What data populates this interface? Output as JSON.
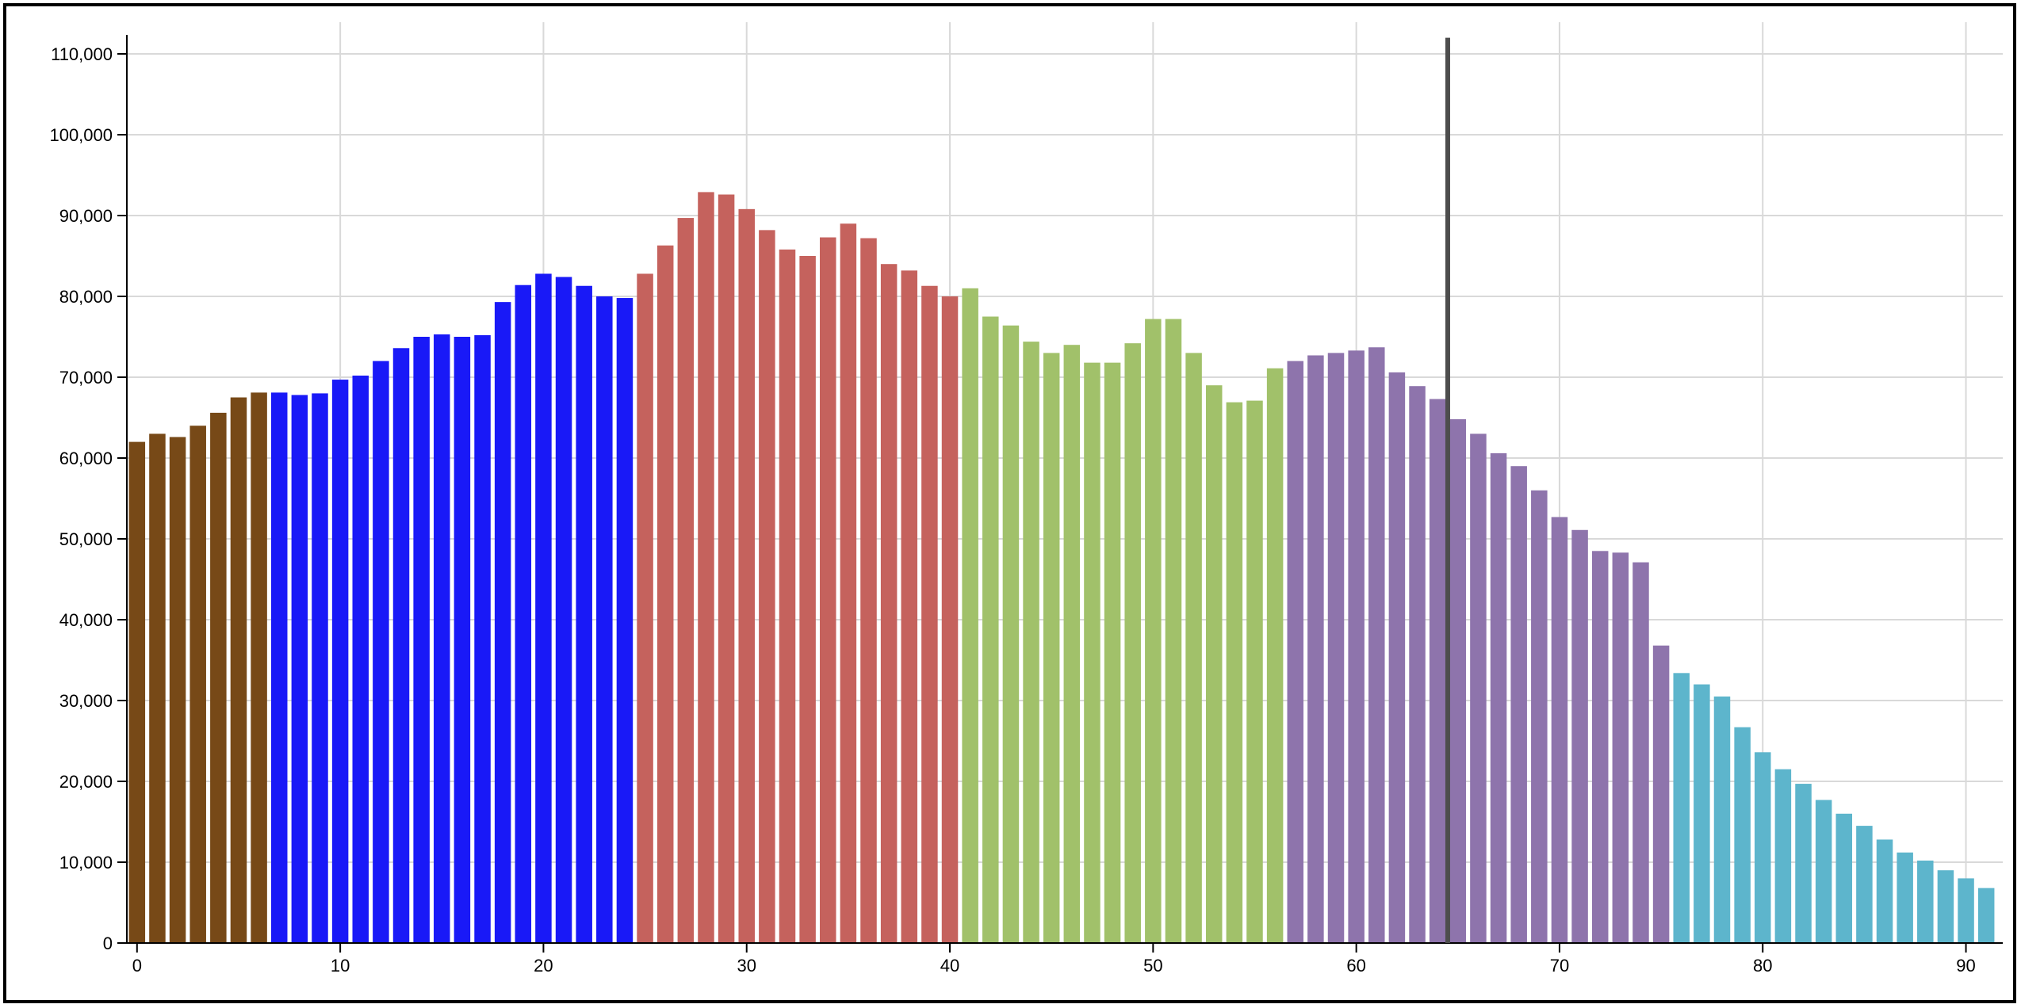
{
  "chart_data": {
    "type": "bar",
    "title": "",
    "xlabel": "",
    "ylabel": "",
    "xlim": [
      -0.5,
      91.5
    ],
    "ylim": [
      0,
      110000
    ],
    "x_ticks": [
      0,
      10,
      20,
      30,
      40,
      50,
      60,
      70,
      80,
      90
    ],
    "x_tick_labels": [
      "0",
      "10",
      "20",
      "30",
      "40",
      "50",
      "60",
      "70",
      "80",
      "90"
    ],
    "y_ticks": [
      0,
      10000,
      20000,
      30000,
      40000,
      50000,
      60000,
      70000,
      80000,
      90000,
      100000,
      110000
    ],
    "y_tick_labels": [
      "0",
      "10,000",
      "20,000",
      "30,000",
      "40,000",
      "50,000",
      "60,000",
      "70,000",
      "80,000",
      "90,000",
      "100,000",
      "110,000"
    ],
    "grid": true,
    "legend": "none",
    "x": [
      0,
      1,
      2,
      3,
      4,
      5,
      6,
      7,
      8,
      9,
      10,
      11,
      12,
      13,
      14,
      15,
      16,
      17,
      18,
      19,
      20,
      21,
      22,
      23,
      24,
      25,
      26,
      27,
      28,
      29,
      30,
      31,
      32,
      33,
      34,
      35,
      36,
      37,
      38,
      39,
      40,
      41,
      42,
      43,
      44,
      45,
      46,
      47,
      48,
      49,
      50,
      51,
      52,
      53,
      54,
      55,
      56,
      57,
      58,
      59,
      60,
      61,
      62,
      63,
      64,
      65,
      66,
      67,
      68,
      69,
      70,
      71,
      72,
      73,
      74,
      75,
      76,
      77,
      78,
      79,
      80,
      81,
      82,
      83,
      84,
      85,
      86,
      87,
      88,
      89,
      90,
      91
    ],
    "values": [
      62000,
      63000,
      62600,
      64000,
      65600,
      67500,
      68100,
      68100,
      67800,
      68000,
      69700,
      70200,
      72000,
      73600,
      75000,
      75300,
      75000,
      75200,
      79300,
      81400,
      82800,
      82400,
      81300,
      80000,
      79800,
      82800,
      86300,
      89700,
      92900,
      92600,
      90800,
      88200,
      85800,
      85000,
      87300,
      89000,
      87200,
      84000,
      83200,
      81300,
      80000,
      81000,
      77500,
      76400,
      74400,
      73000,
      74000,
      71800,
      71800,
      74200,
      77200,
      77200,
      73000,
      69000,
      66900,
      67100,
      71100,
      72000,
      72700,
      73000,
      73300,
      73700,
      70600,
      68900,
      67300,
      64800,
      63000,
      60600,
      59000,
      56000,
      52700,
      51100,
      48500,
      48300,
      47100,
      36800,
      33400,
      32000,
      30500,
      26700,
      23600,
      21500,
      19700,
      17700,
      16000,
      14500,
      12800,
      11200,
      10200,
      9000,
      8000,
      6800
    ],
    "value_colors": [
      "#774917",
      "#774917",
      "#774917",
      "#774917",
      "#774917",
      "#774917",
      "#774917",
      "#1919f7",
      "#1919f7",
      "#1919f7",
      "#1919f7",
      "#1919f7",
      "#1919f7",
      "#1919f7",
      "#1919f7",
      "#1919f7",
      "#1919f7",
      "#1919f7",
      "#1919f7",
      "#1919f7",
      "#1919f7",
      "#1919f7",
      "#1919f7",
      "#1919f7",
      "#1919f7",
      "#c5625d",
      "#c5625d",
      "#c5625d",
      "#c5625d",
      "#c5625d",
      "#c5625d",
      "#c5625d",
      "#c5625d",
      "#c5625d",
      "#c5625d",
      "#c5625d",
      "#c5625d",
      "#c5625d",
      "#c5625d",
      "#c5625d",
      "#c5625d",
      "#a1c16a",
      "#a1c16a",
      "#a1c16a",
      "#a1c16a",
      "#a1c16a",
      "#a1c16a",
      "#a1c16a",
      "#a1c16a",
      "#a1c16a",
      "#a1c16a",
      "#a1c16a",
      "#a1c16a",
      "#a1c16a",
      "#a1c16a",
      "#a1c16a",
      "#a1c16a",
      "#8e74ac",
      "#8e74ac",
      "#8e74ac",
      "#8e74ac",
      "#8e74ac",
      "#8e74ac",
      "#8e74ac",
      "#8e74ac",
      "#8e74ac",
      "#8e74ac",
      "#8e74ac",
      "#8e74ac",
      "#8e74ac",
      "#8e74ac",
      "#8e74ac",
      "#8e74ac",
      "#8e74ac",
      "#8e74ac",
      "#8e74ac",
      "#5db5cc",
      "#5db5cc",
      "#5db5cc",
      "#5db5cc",
      "#5db5cc",
      "#5db5cc",
      "#5db5cc",
      "#5db5cc",
      "#5db5cc",
      "#5db5cc",
      "#5db5cc",
      "#5db5cc",
      "#5db5cc",
      "#5db5cc",
      "#5db5cc",
      "#5db5cc"
    ],
    "marker_line": {
      "x": 64.5,
      "y_top": 112000,
      "color": "#4d4d4d"
    }
  }
}
